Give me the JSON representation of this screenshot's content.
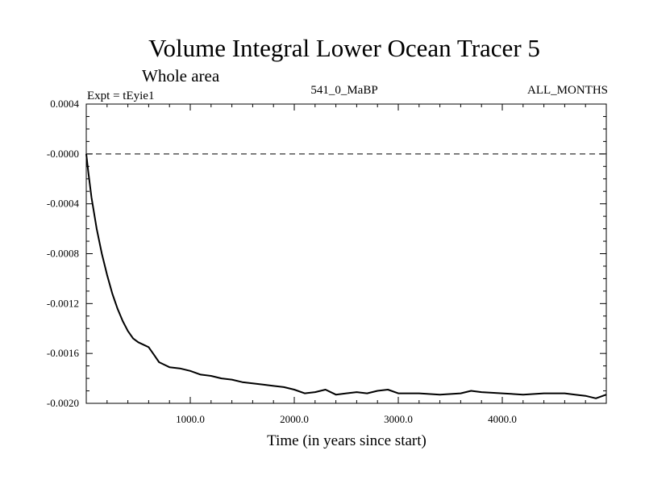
{
  "chart_data": {
    "type": "line",
    "title": "Volume Integral Lower Ocean Tracer 5",
    "subtitle": "Whole area",
    "experiment": "Expt = tEyie1",
    "period": "541_0_MaBP",
    "months": "ALL_MONTHS",
    "xlabel": "Time (in years since start)",
    "ylabel": "",
    "xlim": [
      0,
      5000
    ],
    "ylim": [
      -0.002,
      0.0004
    ],
    "xticks": [
      1000,
      2000,
      3000,
      4000
    ],
    "xtick_labels": [
      "1000.0",
      "2000.0",
      "3000.0",
      "4000.0"
    ],
    "yticks": [
      0.0004,
      0.0,
      -0.0004,
      -0.0008,
      -0.0012,
      -0.0016,
      -0.002
    ],
    "ytick_labels": [
      "0.0004",
      "-0.0000",
      "-0.0004",
      "-0.0008",
      "-0.0012",
      "-0.0016",
      "-0.0020"
    ],
    "reference_line": {
      "y": 0.0,
      "style": "dashed"
    },
    "series": [
      {
        "name": "tEyie1",
        "x": [
          0,
          20,
          50,
          100,
          150,
          200,
          250,
          300,
          350,
          400,
          450,
          500,
          550,
          600,
          650,
          700,
          750,
          800,
          900,
          1000,
          1100,
          1200,
          1300,
          1400,
          1500,
          1600,
          1700,
          1800,
          1900,
          2000,
          2100,
          2200,
          2300,
          2400,
          2500,
          2600,
          2700,
          2800,
          2900,
          3000,
          3200,
          3400,
          3600,
          3700,
          3800,
          4000,
          4200,
          4400,
          4600,
          4700,
          4800,
          4900,
          5000
        ],
        "values": [
          0.0,
          -0.00015,
          -0.00035,
          -0.0006,
          -0.0008,
          -0.00097,
          -0.00112,
          -0.00124,
          -0.00134,
          -0.00142,
          -0.00148,
          -0.00151,
          -0.00153,
          -0.00155,
          -0.00161,
          -0.00167,
          -0.00169,
          -0.00171,
          -0.00172,
          -0.00174,
          -0.00177,
          -0.00178,
          -0.0018,
          -0.00181,
          -0.00183,
          -0.00184,
          -0.00185,
          -0.00186,
          -0.00187,
          -0.00189,
          -0.00192,
          -0.00191,
          -0.00189,
          -0.00193,
          -0.00192,
          -0.00191,
          -0.00192,
          -0.0019,
          -0.00189,
          -0.00192,
          -0.00192,
          -0.00193,
          -0.00192,
          -0.0019,
          -0.00191,
          -0.00192,
          -0.00193,
          -0.00192,
          -0.00192,
          -0.00193,
          -0.00194,
          -0.00196,
          -0.00193
        ]
      }
    ]
  }
}
